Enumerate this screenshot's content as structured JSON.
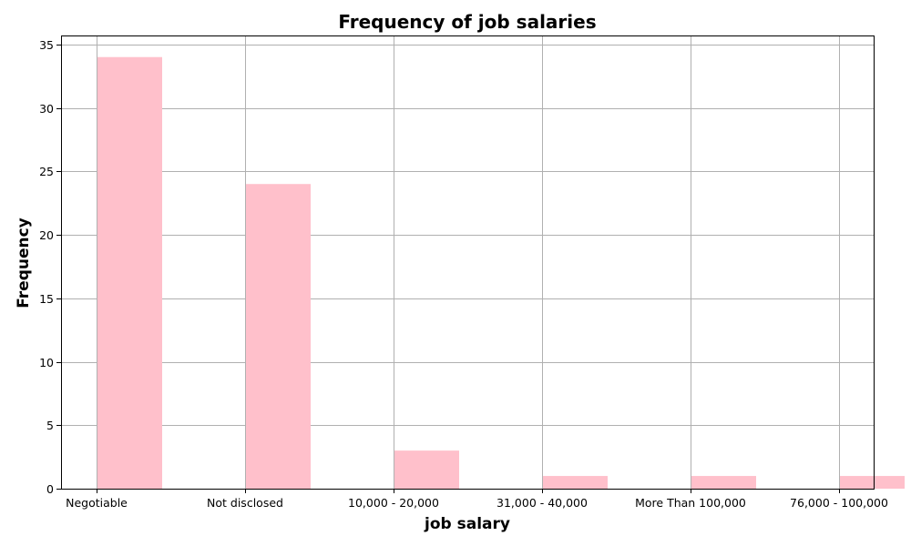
{
  "chart_data": {
    "type": "bar",
    "title": "Frequency of job salaries",
    "xlabel": "job salary",
    "ylabel": "Frequency",
    "categories": [
      "Negotiable",
      "Not disclosed",
      "10,000 - 20,000",
      "31,000 - 40,000",
      "More Than 100,000",
      "76,000 - 100,000"
    ],
    "values": [
      34,
      24,
      3,
      1,
      1,
      1
    ],
    "yticks": [
      0,
      5,
      10,
      15,
      20,
      25,
      30,
      35
    ],
    "ylim": [
      0,
      35.7
    ],
    "grid": true,
    "bar_color": "#ffc0cb"
  }
}
